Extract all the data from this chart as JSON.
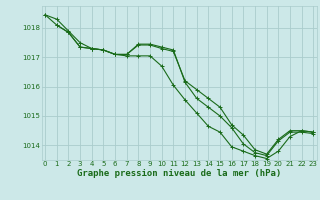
{
  "background_color": "#cce8e8",
  "grid_color": "#aacccc",
  "line_color": "#1a6b1a",
  "title": "Graphe pression niveau de la mer (hPa)",
  "ylim": [
    1013.5,
    1018.75
  ],
  "xlim": [
    -0.3,
    23.3
  ],
  "yticks": [
    1014,
    1015,
    1016,
    1017,
    1018
  ],
  "xticks": [
    0,
    1,
    2,
    3,
    4,
    5,
    6,
    7,
    8,
    9,
    10,
    11,
    12,
    13,
    14,
    15,
    16,
    17,
    18,
    19,
    20,
    21,
    22,
    23
  ],
  "line1_x": [
    0,
    1,
    2,
    3,
    4,
    5,
    6,
    7,
    8,
    9,
    10,
    11,
    12,
    13,
    14,
    15,
    16,
    17,
    18,
    19,
    20,
    21,
    22,
    23
  ],
  "line1_y": [
    1018.45,
    1018.3,
    1017.9,
    1017.5,
    1017.3,
    1017.25,
    1017.1,
    1017.1,
    1017.42,
    1017.42,
    1017.3,
    1017.2,
    1016.2,
    1015.9,
    1015.6,
    1015.3,
    1014.7,
    1014.35,
    1013.85,
    1013.7,
    1014.2,
    1014.5,
    1014.5,
    1014.45
  ],
  "line2_x": [
    0,
    1,
    2,
    3,
    4,
    5,
    6,
    7,
    8,
    9,
    10,
    11,
    12,
    13,
    14,
    15,
    16,
    17,
    18,
    19,
    20,
    21,
    22,
    23
  ],
  "line2_y": [
    1018.45,
    1018.1,
    1017.85,
    1017.35,
    1017.3,
    1017.25,
    1017.1,
    1017.05,
    1017.05,
    1017.05,
    1016.7,
    1016.05,
    1015.55,
    1015.1,
    1014.65,
    1014.45,
    1013.95,
    1013.8,
    1013.65,
    1013.55,
    1013.8,
    1014.3,
    1014.5,
    1014.45
  ],
  "line3_x": [
    1,
    2,
    3,
    4,
    5,
    6,
    7,
    8,
    9,
    10,
    11,
    12,
    13,
    14,
    15,
    16,
    17,
    18,
    19,
    20,
    21,
    22,
    23
  ],
  "line3_y": [
    1018.1,
    1017.85,
    1017.35,
    1017.3,
    1017.25,
    1017.1,
    1017.1,
    1017.45,
    1017.45,
    1017.35,
    1017.25,
    1016.15,
    1015.6,
    1015.3,
    1015.0,
    1014.6,
    1014.05,
    1013.75,
    1013.65,
    1014.15,
    1014.45,
    1014.45,
    1014.4
  ],
  "title_fontsize": 6.5,
  "tick_fontsize": 5.0
}
